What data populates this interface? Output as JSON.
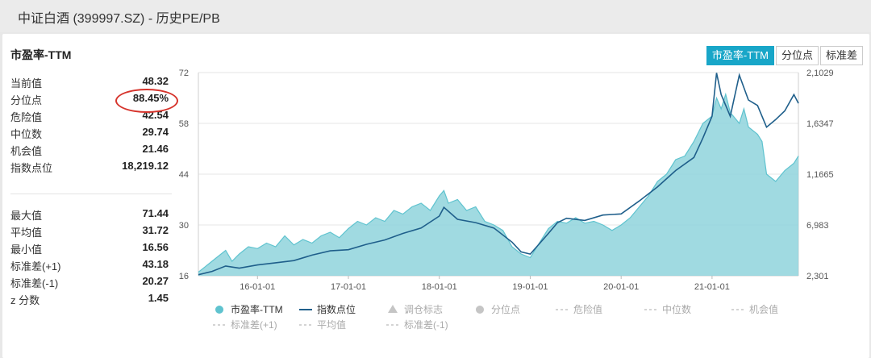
{
  "page": {
    "title": "中证白酒 (399997.SZ) - 历史PE/PB"
  },
  "section_title": "市盈率-TTM",
  "tabs": [
    {
      "label": "市盈率-TTM",
      "active": true
    },
    {
      "label": "分位点",
      "active": false
    },
    {
      "label": "标准差",
      "active": false
    }
  ],
  "stats": [
    {
      "label": "当前值",
      "value": "48.32"
    },
    {
      "label": "分位点",
      "value": "88.45%"
    },
    {
      "label": "危险值",
      "value": "42.54"
    },
    {
      "label": "中位数",
      "value": "29.74"
    },
    {
      "label": "机会值",
      "value": "21.46"
    },
    {
      "label": "指数点位",
      "value": "18,219.12"
    },
    {
      "label": "最大值",
      "value": "71.44"
    },
    {
      "label": "平均值",
      "value": "31.72"
    },
    {
      "label": "最小值",
      "value": "16.56"
    },
    {
      "label": "标准差(+1)",
      "value": "43.18"
    },
    {
      "label": "标准差(-1)",
      "value": "20.27"
    },
    {
      "label": "z 分数",
      "value": "1.45"
    }
  ],
  "colors": {
    "pe_fill": "#8fd3dc",
    "pe_line": "#5fc3cf",
    "index_line": "#1f5f8b",
    "active_tab": "#18a6c8",
    "highlight": "#d6342c"
  },
  "chart_data": {
    "type": "area",
    "x_tick_labels": [
      "16-01-01",
      "17-01-01",
      "18-01-01",
      "19-01-01",
      "20-01-01",
      "21-01-01"
    ],
    "x_ticks": [
      2016,
      2017,
      2018,
      2019,
      2020,
      2021
    ],
    "x_range": [
      2015.35,
      2021.95
    ],
    "y_left": {
      "ticks": [
        16,
        30,
        44,
        58,
        72
      ],
      "tick_labels": [
        "16",
        "30",
        "44",
        "58",
        "72"
      ],
      "range": [
        16,
        72
      ]
    },
    "y_right": {
      "ticks": [
        2301,
        6983,
        11665,
        16347,
        21029
      ],
      "tick_labels": [
        "2,301",
        "6,983",
        "1,1665",
        "1,6347",
        "2,1029"
      ],
      "range": [
        2301,
        21029
      ]
    },
    "grid": "horizontal",
    "legend_position": "bottom",
    "legend": [
      {
        "name": "市盈率-TTM",
        "icon": "circle",
        "active": true
      },
      {
        "name": "指数点位",
        "icon": "line",
        "active": true
      },
      {
        "name": "调仓标志",
        "icon": "triangle",
        "active": false
      },
      {
        "name": "分位点",
        "icon": "circle",
        "active": false
      },
      {
        "name": "危险值",
        "icon": "dash",
        "active": false
      },
      {
        "name": "中位数",
        "icon": "dash",
        "active": false
      },
      {
        "name": "机会值",
        "icon": "dash",
        "active": false
      },
      {
        "name": "标准差(+1)",
        "icon": "dash",
        "active": false
      },
      {
        "name": "平均值",
        "icon": "dash",
        "active": false
      },
      {
        "name": "标准差(-1)",
        "icon": "dash",
        "active": false
      }
    ],
    "series": [
      {
        "name": "市盈率-TTM",
        "axis": "left",
        "x": [
          2015.35,
          2015.45,
          2015.55,
          2015.65,
          2015.72,
          2015.8,
          2015.9,
          2016.0,
          2016.1,
          2016.2,
          2016.3,
          2016.4,
          2016.5,
          2016.6,
          2016.7,
          2016.8,
          2016.9,
          2017.0,
          2017.1,
          2017.2,
          2017.3,
          2017.4,
          2017.5,
          2017.6,
          2017.7,
          2017.8,
          2017.9,
          2018.0,
          2018.05,
          2018.1,
          2018.2,
          2018.3,
          2018.4,
          2018.5,
          2018.6,
          2018.7,
          2018.8,
          2018.9,
          2019.0,
          2019.1,
          2019.2,
          2019.3,
          2019.4,
          2019.5,
          2019.6,
          2019.7,
          2019.8,
          2019.9,
          2020.0,
          2020.1,
          2020.2,
          2020.3,
          2020.4,
          2020.5,
          2020.55,
          2020.6,
          2020.7,
          2020.8,
          2020.9,
          2021.0,
          2021.05,
          2021.1,
          2021.15,
          2021.2,
          2021.3,
          2021.35,
          2021.4,
          2021.5,
          2021.55,
          2021.6,
          2021.7,
          2021.8,
          2021.9,
          2021.95
        ],
        "y": [
          17,
          19,
          21,
          23,
          20,
          22,
          24,
          23.5,
          25,
          24,
          27,
          24.5,
          26,
          25,
          27,
          28,
          26.5,
          29,
          31,
          30,
          32,
          31,
          34,
          33,
          35,
          36,
          34,
          38,
          39.5,
          36,
          37,
          34,
          35,
          31,
          30,
          28.5,
          24,
          22,
          21,
          25,
          29,
          31,
          30.5,
          32,
          30.5,
          31,
          30,
          28.5,
          30,
          32,
          35,
          38,
          42,
          44,
          46,
          48,
          49,
          53,
          58,
          60,
          65,
          62,
          66,
          61,
          58,
          62,
          57,
          55,
          53,
          44,
          42,
          45,
          47,
          49
        ]
      },
      {
        "name": "指数点位",
        "axis": "right",
        "x": [
          2015.35,
          2015.5,
          2015.65,
          2015.8,
          2016.0,
          2016.2,
          2016.4,
          2016.6,
          2016.8,
          2017.0,
          2017.2,
          2017.4,
          2017.6,
          2017.8,
          2018.0,
          2018.05,
          2018.2,
          2018.4,
          2018.6,
          2018.8,
          2018.9,
          2019.0,
          2019.2,
          2019.3,
          2019.4,
          2019.6,
          2019.8,
          2020.0,
          2020.2,
          2020.4,
          2020.6,
          2020.8,
          2020.9,
          2021.0,
          2021.05,
          2021.1,
          2021.2,
          2021.3,
          2021.4,
          2021.5,
          2021.6,
          2021.7,
          2021.8,
          2021.9,
          2021.95
        ],
        "y": [
          2400,
          2700,
          3200,
          3000,
          3300,
          3500,
          3700,
          4200,
          4600,
          4700,
          5200,
          5600,
          6200,
          6700,
          7800,
          8600,
          7500,
          7200,
          6700,
          5400,
          4500,
          4300,
          6200,
          7200,
          7600,
          7400,
          7900,
          8000,
          9200,
          10500,
          12000,
          13200,
          15000,
          17000,
          21000,
          19000,
          17000,
          20800,
          18500,
          18000,
          16000,
          16700,
          17500,
          19000,
          18200
        ]
      }
    ]
  }
}
